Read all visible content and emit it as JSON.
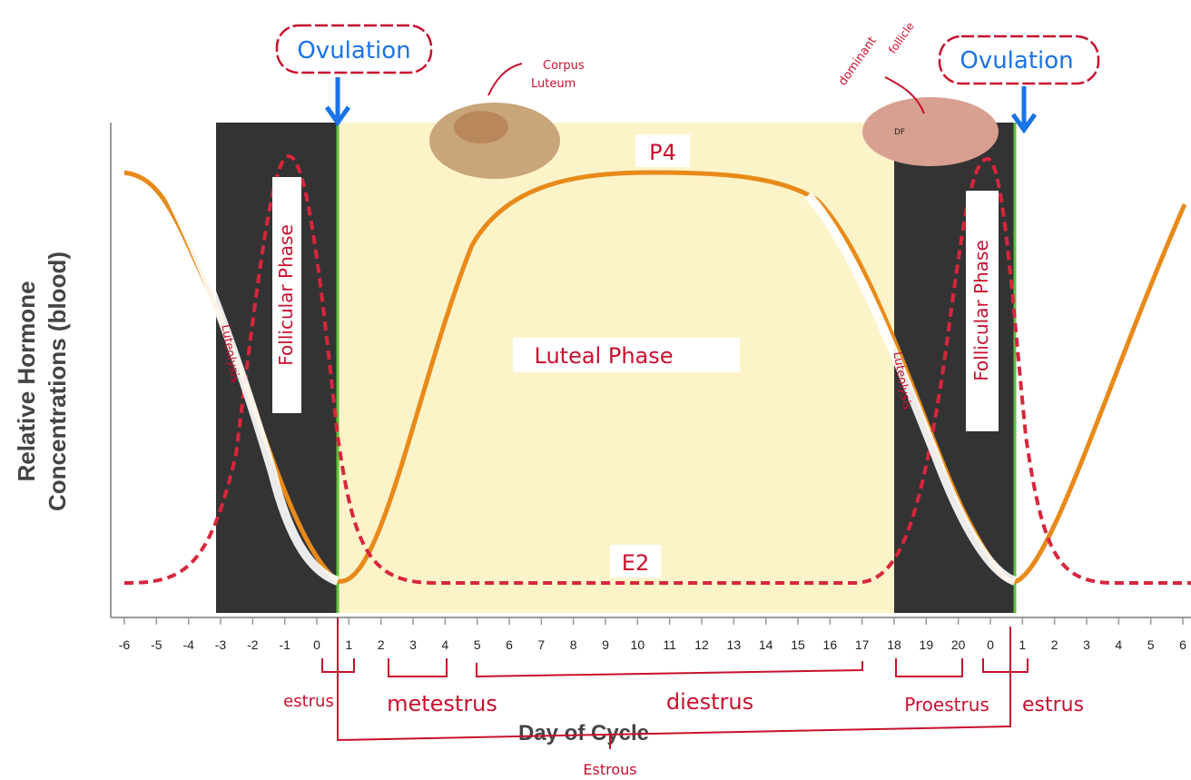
{
  "y_axis_label": [
    "Relative Hormone",
    "Concentrations (blood)"
  ],
  "x_axis_label": "Day of Cycle",
  "day_ticks": [
    -6,
    -5,
    -4,
    -3,
    -2,
    -1,
    0,
    1,
    2,
    3,
    4,
    5,
    6,
    7,
    8,
    9,
    10,
    11,
    12,
    13,
    14,
    15,
    16,
    17,
    18,
    19,
    20,
    0,
    1,
    2,
    3,
    4,
    5,
    6
  ],
  "curves": {
    "progesterone": "P4",
    "estradiol": "E2"
  },
  "phases": {
    "follicular_left": "Follicular Phase",
    "luteal": "Luteal Phase",
    "follicular_right": "Follicular Phase",
    "luteolysis_left": "Luteolysis",
    "luteolysis_right": "Luteolysis"
  },
  "annotations": {
    "ovulation_left": "Ovulation",
    "ovulation_right": "Ovulation",
    "corpus_luteum": [
      "Corpus",
      "Luteum"
    ],
    "dominant_follicle": [
      "dominant",
      "follicle"
    ],
    "follicle_tag": "DF"
  },
  "stages": {
    "estrus_left": "estrus",
    "metestrus": "metestrus",
    "diestrus": "diestrus",
    "proestrus": "Proestrus",
    "estrus_right": "estrus",
    "cycle": "Estrous"
  }
}
